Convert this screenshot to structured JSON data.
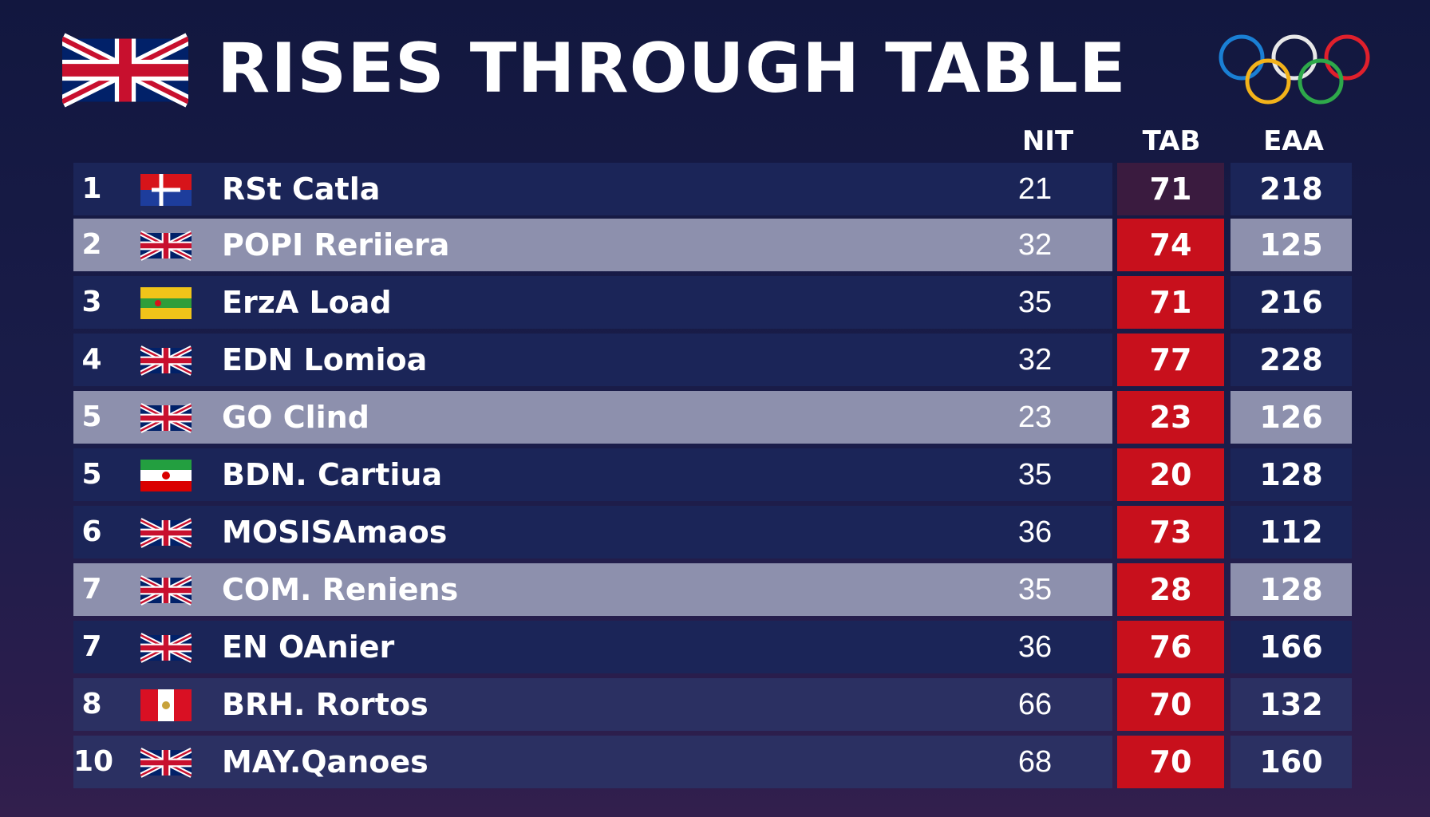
{
  "header": {
    "title": "RISES THROUGH TABLE",
    "flag_icon": "union-jack-flag-icon",
    "rings_icon": "olympic-rings-icon"
  },
  "columns": {
    "nit": "NIT",
    "tab": "TAB",
    "eaa": "EAA"
  },
  "colors": {
    "background": "#161a45",
    "row_dark": "#1b2558",
    "row_light": "#8d90ad",
    "tab_highlight": "#c8101c"
  },
  "rows": [
    {
      "rank": "1",
      "flag": "red-white-flag-icon",
      "name": "RSt Catla",
      "nit": "21",
      "tab": "71",
      "eaa": "218"
    },
    {
      "rank": "2",
      "flag": "union-jack-flag-icon",
      "name": "POPI Reriiera",
      "nit": "32",
      "tab": "74",
      "eaa": "125"
    },
    {
      "rank": "3",
      "flag": "yellow-green-flag-icon",
      "name": "ErzA Load",
      "nit": "35",
      "tab": "71",
      "eaa": "216"
    },
    {
      "rank": "4",
      "flag": "union-jack-flag-icon",
      "name": "EDN Lomioa",
      "nit": "32",
      "tab": "77",
      "eaa": "228"
    },
    {
      "rank": "5",
      "flag": "union-jack-flag-icon",
      "name": "GO Clind",
      "nit": "23",
      "tab": "23",
      "eaa": "126"
    },
    {
      "rank": "5",
      "flag": "green-white-red-flag-icon",
      "name": "BDN. Cartiua",
      "nit": "35",
      "tab": "20",
      "eaa": "128"
    },
    {
      "rank": "6",
      "flag": "union-jack-flag-icon",
      "name": "MOSISAmaos",
      "nit": "36",
      "tab": "73",
      "eaa": "112"
    },
    {
      "rank": "7",
      "flag": "union-jack-flag-icon",
      "name": "COM. Reniens",
      "nit": "35",
      "tab": "28",
      "eaa": "128"
    },
    {
      "rank": "7",
      "flag": "union-jack-flag-icon",
      "name": "EN OAnier",
      "nit": "36",
      "tab": "76",
      "eaa": "166"
    },
    {
      "rank": "8",
      "flag": "red-white-red-flag-icon",
      "name": "BRH. Rortos",
      "nit": "66",
      "tab": "70",
      "eaa": "132"
    },
    {
      "rank": "10",
      "flag": "union-jack-flag-icon",
      "name": "MAY.Qanoes",
      "nit": "68",
      "tab": "70",
      "eaa": "160"
    }
  ]
}
